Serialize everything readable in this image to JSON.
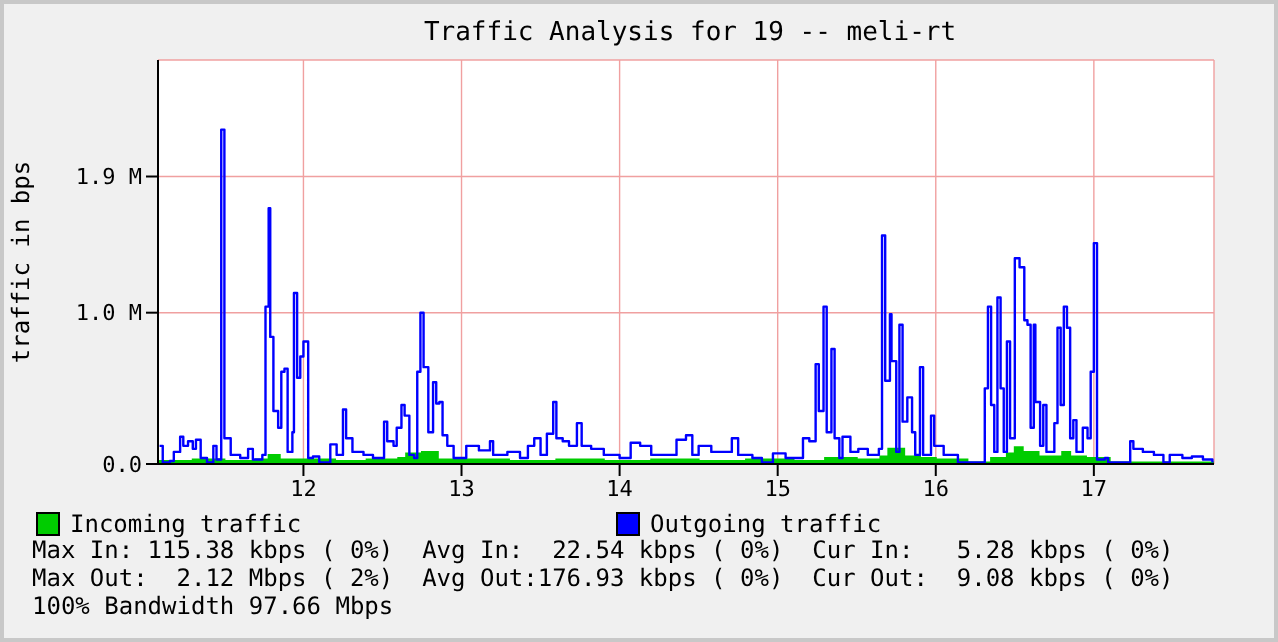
{
  "chart_data": {
    "type": "line",
    "title": "Traffic Analysis for 19 -- meli-rt",
    "ylabel": "traffic in bps",
    "xlim": [
      11.08,
      17.76
    ],
    "xticks": [
      12,
      13,
      14,
      15,
      16,
      17
    ],
    "ylim": [
      0,
      2.67
    ],
    "yticks": [
      {
        "value": 0,
        "label": "0.0"
      },
      {
        "value": 1,
        "label": "1.0 M"
      },
      {
        "value": 1.9,
        "label": "1.9 M"
      }
    ],
    "grid": true,
    "legend": "bottom left",
    "series": [
      {
        "name": "Incoming traffic",
        "type": "area",
        "color": "#00cc00",
        "x": [
          11.08,
          11.3,
          11.5,
          11.7,
          11.78,
          11.85,
          12.0,
          12.2,
          12.4,
          12.6,
          12.65,
          12.75,
          12.85,
          13.0,
          13.3,
          13.6,
          13.9,
          14.2,
          14.5,
          14.8,
          15.1,
          15.3,
          15.5,
          15.65,
          15.7,
          15.8,
          15.9,
          16.0,
          16.2,
          16.35,
          16.45,
          16.5,
          16.55,
          16.65,
          16.8,
          16.85,
          16.95,
          17.1,
          17.4,
          17.76
        ],
        "values": [
          0.02,
          0.03,
          0.02,
          0.03,
          0.06,
          0.03,
          0.03,
          0.02,
          0.03,
          0.04,
          0.07,
          0.08,
          0.03,
          0.03,
          0.02,
          0.03,
          0.02,
          0.03,
          0.02,
          0.03,
          0.02,
          0.04,
          0.03,
          0.05,
          0.1,
          0.05,
          0.04,
          0.03,
          0.01,
          0.04,
          0.07,
          0.11,
          0.08,
          0.05,
          0.08,
          0.05,
          0.04,
          0.01,
          0.01,
          0.01
        ]
      },
      {
        "name": "Outgoing traffic",
        "type": "step",
        "color": "#0000ff",
        "x": [
          11.09,
          11.11,
          11.155,
          11.18,
          11.22,
          11.24,
          11.27,
          11.3,
          11.32,
          11.35,
          11.39,
          11.43,
          11.45,
          11.48,
          11.5,
          11.54,
          11.6,
          11.65,
          11.68,
          11.74,
          11.76,
          11.78,
          11.79,
          11.81,
          11.84,
          11.86,
          11.88,
          11.9,
          11.93,
          11.94,
          11.96,
          11.98,
          12.0,
          12.03,
          12.06,
          12.1,
          12.17,
          12.21,
          12.25,
          12.27,
          12.31,
          12.38,
          12.44,
          12.51,
          12.53,
          12.57,
          12.59,
          12.62,
          12.64,
          12.67,
          12.7,
          12.72,
          12.74,
          12.76,
          12.79,
          12.82,
          12.84,
          12.86,
          12.88,
          12.91,
          12.95,
          13.03,
          13.11,
          13.18,
          13.2,
          13.29,
          13.37,
          13.42,
          13.46,
          13.5,
          13.54,
          13.58,
          13.6,
          13.64,
          13.68,
          13.73,
          13.76,
          13.82,
          13.9,
          14.0,
          14.07,
          14.13,
          14.2,
          14.36,
          14.42,
          14.46,
          14.5,
          14.58,
          14.71,
          14.75,
          14.84,
          14.9,
          14.97,
          15.05,
          15.16,
          15.2,
          15.24,
          15.26,
          15.29,
          15.31,
          15.34,
          15.36,
          15.39,
          15.41,
          15.46,
          15.51,
          15.57,
          15.64,
          15.66,
          15.68,
          15.71,
          15.72,
          15.75,
          15.77,
          15.79,
          15.82,
          15.85,
          15.87,
          15.9,
          15.92,
          15.97,
          15.99,
          16.05,
          16.14,
          16.24,
          16.31,
          16.33,
          16.35,
          16.37,
          16.39,
          16.41,
          16.43,
          16.45,
          16.47,
          16.5,
          16.53,
          16.56,
          16.58,
          16.6,
          16.62,
          16.63,
          16.66,
          16.68,
          16.7,
          16.75,
          16.77,
          16.79,
          16.81,
          16.83,
          16.85,
          16.87,
          16.89,
          16.93,
          16.96,
          16.98,
          17.0,
          17.02,
          17.07,
          17.09,
          17.15,
          17.23,
          17.25,
          17.31,
          17.38,
          17.44,
          17.48,
          17.56,
          17.62,
          17.69,
          17.75
        ],
        "values": [
          0.12,
          0.01,
          0.02,
          0.08,
          0.18,
          0.12,
          0.15,
          0.1,
          0.16,
          0.04,
          0.01,
          0.12,
          0.03,
          2.21,
          0.17,
          0.06,
          0.04,
          0.1,
          0.03,
          0.06,
          1.04,
          1.69,
          0.84,
          0.35,
          0.24,
          0.61,
          0.63,
          0.08,
          0.21,
          1.13,
          0.57,
          0.71,
          0.81,
          0.04,
          0.05,
          0.01,
          0.13,
          0.06,
          0.36,
          0.17,
          0.08,
          0.06,
          0.04,
          0.28,
          0.15,
          0.12,
          0.24,
          0.39,
          0.32,
          0.06,
          0.04,
          0.61,
          1.0,
          0.64,
          0.21,
          0.54,
          0.4,
          0.41,
          0.19,
          0.12,
          0.04,
          0.12,
          0.09,
          0.15,
          0.06,
          0.08,
          0.04,
          0.12,
          0.17,
          0.06,
          0.2,
          0.41,
          0.17,
          0.15,
          0.12,
          0.27,
          0.12,
          0.1,
          0.06,
          0.04,
          0.14,
          0.12,
          0.06,
          0.16,
          0.19,
          0.06,
          0.12,
          0.08,
          0.17,
          0.06,
          0.04,
          0.01,
          0.07,
          0.04,
          0.17,
          0.15,
          0.66,
          0.35,
          1.04,
          0.21,
          0.76,
          0.17,
          0.04,
          0.18,
          0.08,
          0.1,
          0.06,
          0.1,
          1.51,
          0.55,
          0.99,
          0.68,
          0.08,
          0.92,
          0.28,
          0.44,
          0.21,
          0.06,
          0.64,
          0.06,
          0.32,
          0.12,
          0.06,
          0.01,
          0.01,
          0.5,
          1.04,
          0.39,
          0.08,
          1.1,
          0.5,
          0.08,
          0.81,
          0.17,
          1.36,
          1.3,
          0.95,
          0.92,
          0.24,
          0.92,
          0.41,
          0.12,
          0.39,
          0.08,
          0.27,
          0.9,
          0.39,
          1.04,
          0.9,
          0.17,
          0.29,
          0.08,
          0.24,
          0.17,
          0.61,
          1.46,
          0.03,
          0.04,
          0.01,
          0.01,
          0.15,
          0.1,
          0.08,
          0.06,
          0.01,
          0.06,
          0.04,
          0.05,
          0.03,
          0.01
        ]
      }
    ],
    "annotations": [
      "Max In: 115.38 kbps ( 0%)  Avg In:  22.54 kbps ( 0%)  Cur In:   5.28 kbps ( 0%)",
      "Max Out:  2.12 Mbps ( 2%)  Avg Out:176.93 kbps ( 0%)  Cur Out:  9.08 kbps ( 0%)",
      "100% Bandwidth 97.66 Mbps"
    ]
  }
}
